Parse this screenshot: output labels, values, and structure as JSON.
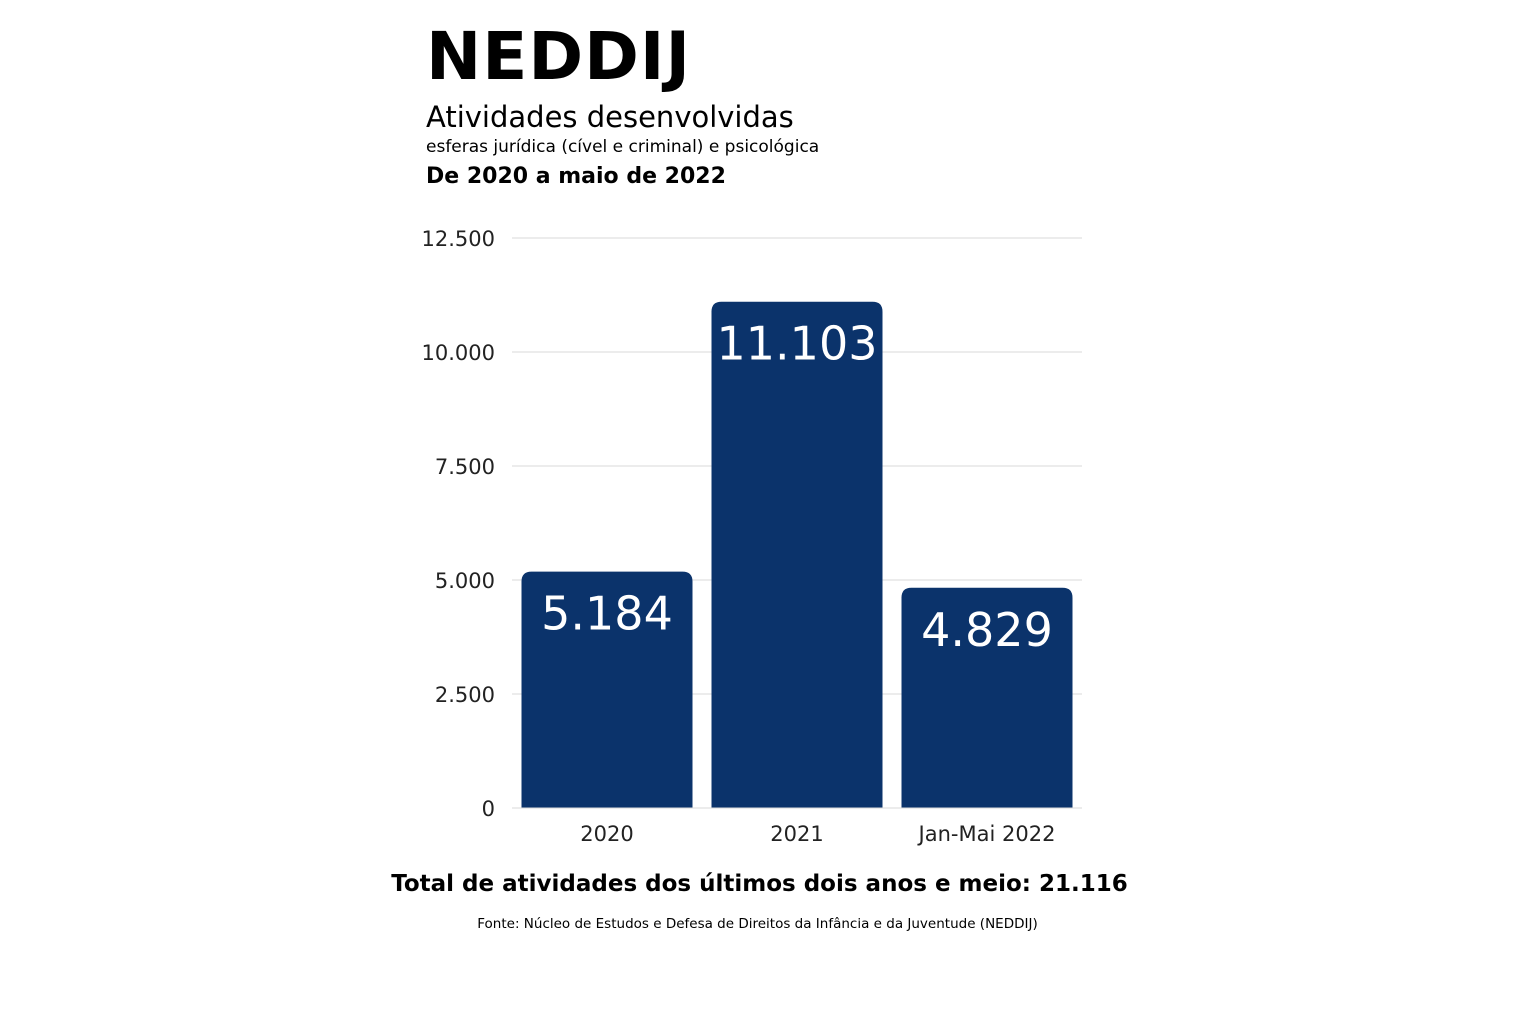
{
  "header": {
    "title": "NEDDIJ",
    "subtitle": "Atividades desenvolvidas",
    "subsubtitle": "esferas jurídica (cível e criminal) e psicológica",
    "period": "De 2020 a maio de 2022"
  },
  "footer": {
    "total": "Total de atividades dos últimos dois anos e meio: 21.116",
    "source": "Fonte: Núcleo de Estudos e Defesa de Direitos da Infância e da Juventude (NEDDIJ)"
  },
  "colors": {
    "bar": "#0b336b",
    "bar_label": "#ffffff",
    "grid": "#d9d9d9",
    "axis_text": "#222222",
    "text": "#000000"
  },
  "chart_data": {
    "type": "bar",
    "categories": [
      "2020",
      "2021",
      "Jan-Mai 2022"
    ],
    "values": [
      5184,
      11103,
      4829
    ],
    "data_labels": [
      "5.184",
      "11.103",
      "4.829"
    ],
    "yticks": [
      0,
      2500,
      5000,
      7500,
      10000,
      12500
    ],
    "ytick_labels": [
      "0",
      "2.500",
      "5.000",
      "7.500",
      "10.000",
      "12.500"
    ],
    "ylim": [
      0,
      12500
    ],
    "grid": true,
    "legend": false,
    "xlabel": "",
    "ylabel": ""
  }
}
